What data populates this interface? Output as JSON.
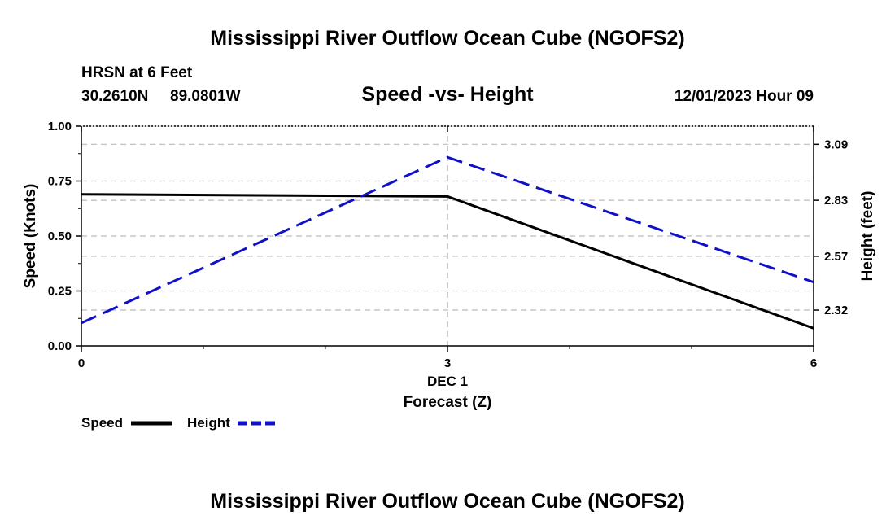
{
  "page": {
    "title_top": "Mississippi River Outflow Ocean Cube (NGOFS2)",
    "title_bottom": "Mississippi River Outflow Ocean Cube (NGOFS2)"
  },
  "header": {
    "station_label": "HRSN at 6 Feet",
    "coords_lat": "30.2610N",
    "coords_lon": "89.0801W",
    "datetime": "12/01/2023 Hour 09"
  },
  "chart_data": {
    "type": "line",
    "title": "Speed -vs- Height",
    "xlabel_line1": "DEC 1",
    "xlabel": "Forecast (Z)",
    "ylabel": "Speed (Knots)",
    "y2label": "Height (feet)",
    "x": [
      0,
      3,
      6
    ],
    "xlim": [
      0,
      6
    ],
    "x_ticks": [
      "0",
      "3",
      "6"
    ],
    "ylim": [
      0,
      1
    ],
    "y_ticks": [
      "0.00",
      "0.25",
      "0.50",
      "0.75",
      "1.00"
    ],
    "y2lim": [
      2.1538,
      3.1744
    ],
    "y2_ticks": [
      "2.32",
      "2.57",
      "2.83",
      "3.09"
    ],
    "y2_tick_values": [
      2.32,
      2.57,
      2.83,
      3.09
    ],
    "series": [
      {
        "name": "Speed",
        "axis": "left",
        "values": [
          0.69,
          0.68,
          0.08
        ],
        "color": "#000000",
        "dash": "solid"
      },
      {
        "name": "Height",
        "axis": "right",
        "values": [
          2.26,
          3.03,
          2.45
        ],
        "color": "#1010c8",
        "dash": "dashed"
      }
    ],
    "grid": true,
    "legend": {
      "position": "bottom-left",
      "items": [
        "Speed",
        "Height"
      ]
    }
  }
}
